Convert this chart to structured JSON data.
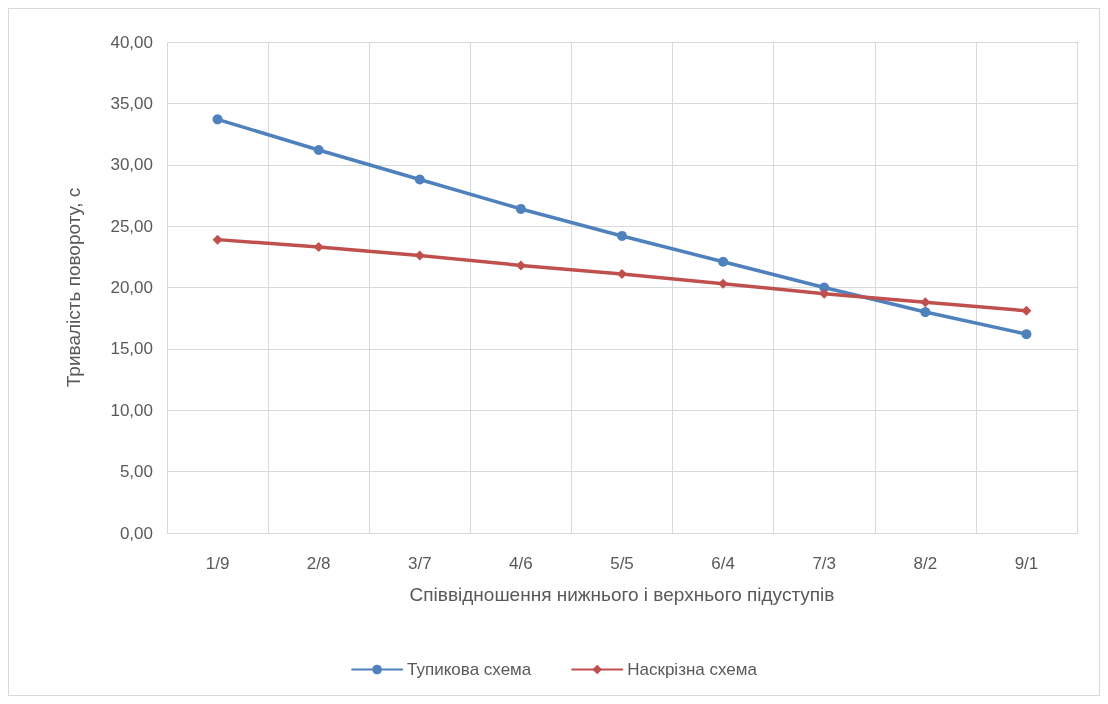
{
  "chart_data": {
    "type": "line",
    "xlabel": "Співвідношення нижнього і верхнього підуступів",
    "ylabel": "Тривалість повороту, с",
    "categories": [
      "1/9",
      "2/8",
      "3/7",
      "4/6",
      "5/5",
      "6/4",
      "7/3",
      "8/2",
      "9/1"
    ],
    "series": [
      {
        "name": "Тупикова схема",
        "color": "#4f81bd",
        "marker": "circle",
        "values": [
          33.7,
          31.2,
          28.8,
          26.4,
          24.2,
          22.1,
          20.0,
          18.0,
          16.2
        ]
      },
      {
        "name": "Наскрізна схема",
        "color": "#c0504d",
        "marker": "diamond",
        "values": [
          23.9,
          23.3,
          22.6,
          21.8,
          21.1,
          20.3,
          19.5,
          18.8,
          18.1
        ]
      }
    ],
    "ylim": [
      0,
      40
    ],
    "yticks": [
      {
        "value": 0,
        "label": "0,00"
      },
      {
        "value": 5,
        "label": "5,00"
      },
      {
        "value": 10,
        "label": "10,00"
      },
      {
        "value": 15,
        "label": "15,00"
      },
      {
        "value": 20,
        "label": "20,00"
      },
      {
        "value": 25,
        "label": "25,00"
      },
      {
        "value": 30,
        "label": "30,00"
      },
      {
        "value": 35,
        "label": "35,00"
      },
      {
        "value": 40,
        "label": "40,00"
      }
    ],
    "grid": true,
    "legend": "bottom",
    "line_style": "solid"
  }
}
